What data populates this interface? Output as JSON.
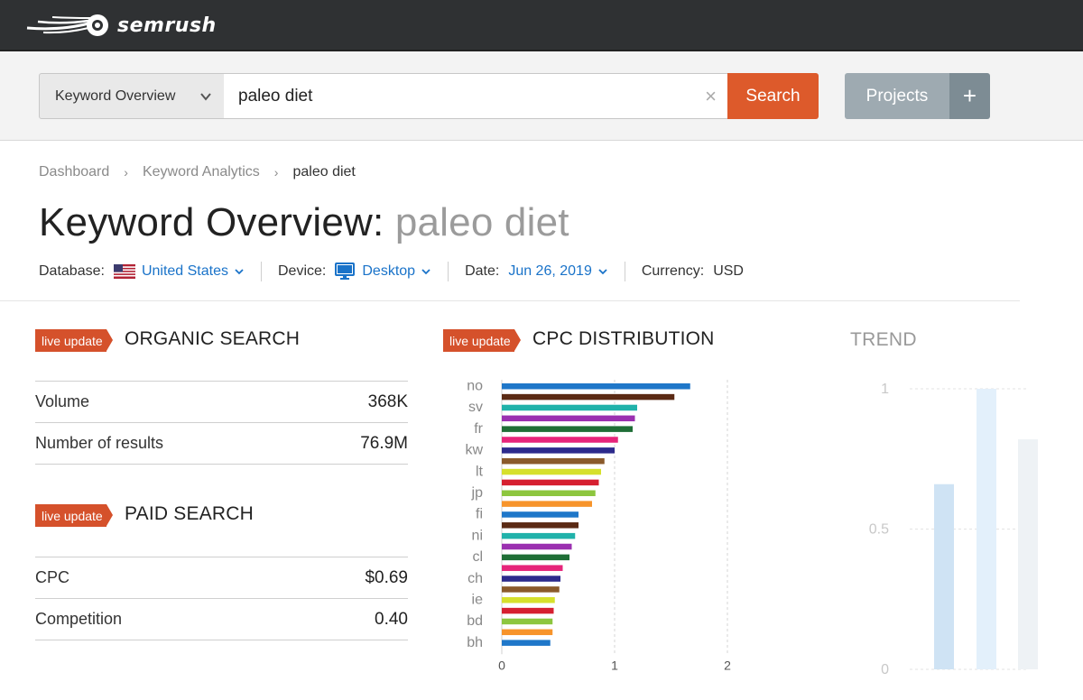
{
  "brand": {
    "name": "semrush"
  },
  "search": {
    "tool_selected": "Keyword Overview",
    "query": "paleo diet",
    "clear_symbol": "×",
    "search_label": "Search",
    "projects_label": "Projects",
    "add_symbol": "+"
  },
  "breadcrumb": [
    "Dashboard",
    "Keyword Analytics",
    "paleo diet"
  ],
  "title": {
    "prefix": "Keyword Overview:",
    "keyword": "paleo diet"
  },
  "filters": {
    "database_label": "Database:",
    "database_value": "United States",
    "device_label": "Device:",
    "device_value": "Desktop",
    "date_label": "Date:",
    "date_value": "Jun 26, 2019",
    "currency_label": "Currency:",
    "currency_value": "USD"
  },
  "badge_label": "live update",
  "organic": {
    "title": "ORGANIC SEARCH",
    "rows": [
      {
        "label": "Volume",
        "value": "368K"
      },
      {
        "label": "Number of results",
        "value": "76.9M"
      }
    ]
  },
  "paid": {
    "title": "PAID SEARCH",
    "rows": [
      {
        "label": "CPC",
        "value": "$0.69"
      },
      {
        "label": "Competition",
        "value": "0.40"
      }
    ]
  },
  "cpc_title": "CPC DISTRIBUTION",
  "trend_title": "TREND",
  "colors": {
    "accent": "#dd5a2b",
    "badge": "#d5512b",
    "link": "#1a73c9",
    "projects": "#9eaab1"
  },
  "chart_data": [
    {
      "type": "bar",
      "orientation": "horizontal",
      "title": "CPC DISTRIBUTION",
      "categories": [
        "no",
        "",
        "sv",
        "",
        "fr",
        "",
        "kw",
        "",
        "lt",
        "",
        "jp",
        "",
        "fi",
        "",
        "ni",
        "",
        "cl",
        "",
        "ch",
        "",
        "ie",
        "",
        "bd",
        "",
        "bh"
      ],
      "values": [
        1.67,
        1.53,
        1.2,
        1.18,
        1.16,
        1.03,
        1.0,
        0.91,
        0.88,
        0.86,
        0.83,
        0.8,
        0.68,
        0.68,
        0.65,
        0.62,
        0.6,
        0.54,
        0.52,
        0.51,
        0.47,
        0.46,
        0.45,
        0.45,
        0.43
      ],
      "colors": [
        "#1f77c9",
        "#5b2a14",
        "#20b2aa",
        "#9b30b0",
        "#1f6e36",
        "#e6257a",
        "#2c2a8c",
        "#8a5a2b",
        "#d6e02c",
        "#d62030",
        "#8dc63f",
        "#f7942b",
        "#1f77c9",
        "#5b2a14",
        "#20b2aa",
        "#9b30b0",
        "#1f6e36",
        "#e6257a",
        "#2c2a8c",
        "#8a5a2b",
        "#d6e02c",
        "#d62030",
        "#8dc63f",
        "#f7942b",
        "#1f77c9"
      ],
      "xlim": [
        0,
        2
      ],
      "xticks": [
        "0",
        "1",
        "2"
      ],
      "grid": true
    },
    {
      "type": "bar",
      "title": "TREND",
      "values": [
        0.66,
        1.0,
        0.82
      ],
      "ylim": [
        0,
        1
      ],
      "yticks": [
        "0",
        "0.5",
        "1"
      ],
      "partially_visible": true
    }
  ]
}
